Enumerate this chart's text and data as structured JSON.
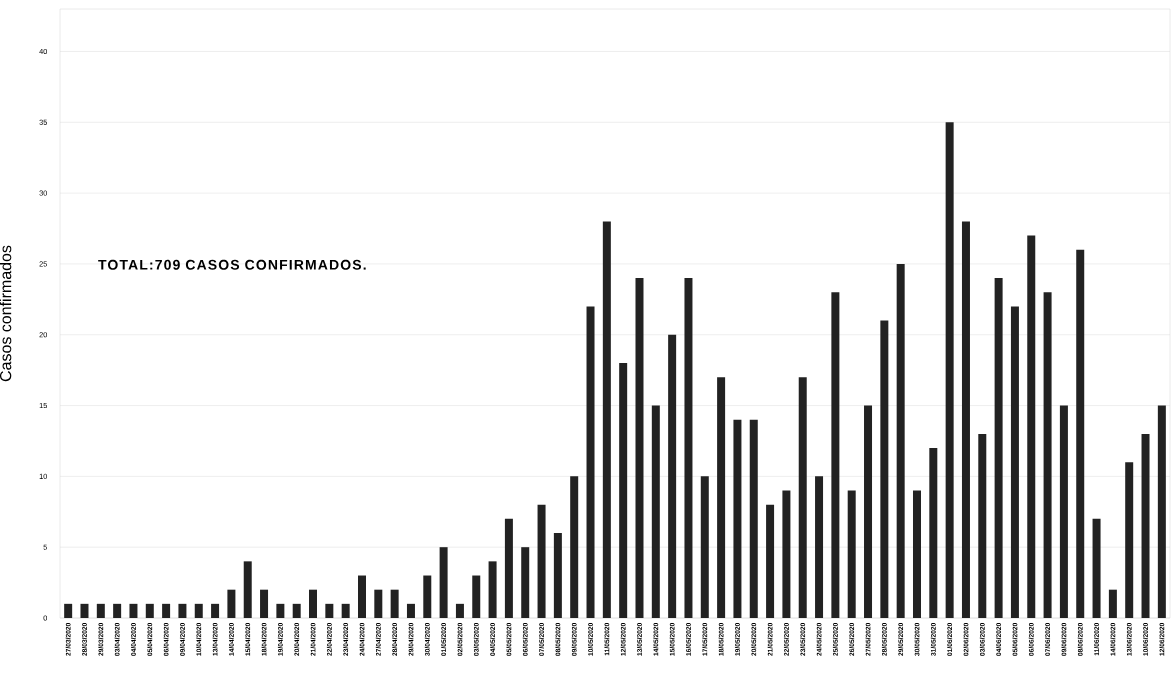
{
  "chart_data": {
    "type": "bar",
    "ylabel": "Casos confirmados",
    "annotations": [
      "TOTAL:709 CASOS CONFIRMADOS."
    ],
    "categories": [
      "27/03/2020",
      "28/03/2020",
      "29/03/2020",
      "03/04/2020",
      "04/04/2020",
      "05/04/2020",
      "06/04/2020",
      "09/04/2020",
      "10/04/2020",
      "13/04/2020",
      "14/04/2020",
      "15/04/2020",
      "18/04/2020",
      "19/04/2020",
      "20/04/2020",
      "21/04/2020",
      "22/04/2020",
      "23/04/2020",
      "24/04/2020",
      "27/04/2020",
      "28/04/2020",
      "29/04/2020",
      "30/04/2020",
      "01/05/2020",
      "02/05/2020",
      "03/05/2020",
      "04/05/2020",
      "05/05/2020",
      "06/05/2020",
      "07/05/2020",
      "08/05/2020",
      "09/05/2020",
      "10/05/2020",
      "11/05/2020",
      "12/05/2020",
      "13/05/2020",
      "14/05/2020",
      "15/05/2020",
      "16/05/2020",
      "17/05/2020",
      "18/05/2020",
      "19/05/2020",
      "20/05/2020",
      "21/05/2020",
      "22/05/2020",
      "23/05/2020",
      "24/05/2020",
      "25/05/2020",
      "26/05/2020",
      "27/05/2020",
      "28/05/2020",
      "29/05/2020",
      "30/05/2020",
      "31/05/2020",
      "01/06/2020",
      "02/06/2020",
      "03/06/2020",
      "04/06/2020",
      "05/06/2020",
      "06/06/2020",
      "07/06/2020",
      "09/06/2020",
      "08/06/2020",
      "11/06/2020",
      "14/06/2020",
      "13/06/2020",
      "10/06/2020",
      "12/06/2020"
    ],
    "values": [
      1,
      1,
      1,
      1,
      1,
      1,
      1,
      1,
      1,
      1,
      2,
      4,
      2,
      1,
      1,
      2,
      1,
      1,
      3,
      2,
      2,
      1,
      3,
      5,
      1,
      3,
      4,
      7,
      5,
      8,
      6,
      10,
      22,
      28,
      18,
      24,
      15,
      20,
      24,
      10,
      17,
      14,
      14,
      8,
      9,
      17,
      10,
      23,
      9,
      15,
      21,
      25,
      9,
      12,
      35,
      28,
      13,
      24,
      22,
      27,
      23,
      15,
      26,
      7,
      2,
      11,
      13,
      15
    ],
    "color": "#222222",
    "ylim": [
      0,
      43
    ],
    "yticks": [
      0,
      5,
      10,
      15,
      20,
      25,
      30,
      35,
      40
    ],
    "grid": "y"
  }
}
